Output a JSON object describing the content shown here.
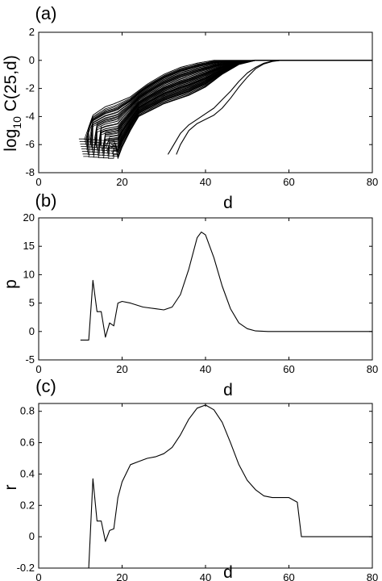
{
  "chart_data": [
    {
      "id": "a",
      "type": "line",
      "panel_label": "(a)",
      "xlabel": "d",
      "ylabel": "log10 C(25,d)",
      "ylabel_parts": {
        "base": "log",
        "sub": "10",
        "rest": " C(25,d)"
      },
      "xlim": [
        0,
        80
      ],
      "ylim": [
        -8,
        2
      ],
      "xticks": [
        0,
        20,
        40,
        60,
        80
      ],
      "yticks": [
        -8,
        -6,
        -4,
        -2,
        0,
        2
      ],
      "bundle": {
        "count": 55,
        "start_x": [
          11,
          19
        ],
        "start_y": [
          -7.0,
          -5.6
        ],
        "upper_path": [
          [
            11,
            -5.6
          ],
          [
            13,
            -3.9
          ],
          [
            16,
            -3.3
          ],
          [
            18,
            -3.1
          ],
          [
            22,
            -2.6
          ],
          [
            26,
            -1.7
          ],
          [
            30,
            -1.0
          ],
          [
            34,
            -0.5
          ],
          [
            38,
            -0.2
          ],
          [
            42,
            0
          ],
          [
            80,
            0
          ]
        ],
        "lower_path": [
          [
            19,
            -7.0
          ],
          [
            20,
            -6.2
          ],
          [
            22,
            -5.0
          ],
          [
            24,
            -4.0
          ],
          [
            30,
            -3.1
          ],
          [
            36,
            -2.5
          ],
          [
            40,
            -1.9
          ],
          [
            44,
            -1.0
          ],
          [
            48,
            -0.3
          ],
          [
            52,
            0
          ],
          [
            80,
            0
          ]
        ]
      },
      "series": [
        {
          "x": [
            31,
            32,
            34,
            36,
            38,
            40,
            42,
            44,
            46,
            48,
            50,
            52,
            54,
            56,
            58,
            60,
            80
          ],
          "y": [
            -6.7,
            -6.2,
            -5.2,
            -4.6,
            -4.2,
            -3.8,
            -3.4,
            -2.8,
            -2.2,
            -1.5,
            -0.9,
            -0.5,
            -0.2,
            -0.05,
            0,
            0,
            0
          ]
        },
        {
          "x": [
            33,
            34,
            36,
            38,
            40,
            42,
            44,
            46,
            48,
            50,
            52,
            54,
            56,
            58,
            60,
            80
          ],
          "y": [
            -6.7,
            -6.0,
            -5.0,
            -4.5,
            -4.2,
            -3.9,
            -3.4,
            -2.7,
            -1.9,
            -1.2,
            -0.6,
            -0.25,
            -0.08,
            0,
            0,
            0
          ]
        }
      ]
    },
    {
      "id": "b",
      "type": "line",
      "panel_label": "(b)",
      "xlabel": "d",
      "ylabel": "p",
      "xlim": [
        0,
        80
      ],
      "ylim": [
        -5,
        20
      ],
      "xticks": [
        0,
        20,
        40,
        60,
        80
      ],
      "yticks": [
        -5,
        0,
        5,
        10,
        15,
        20
      ],
      "series": [
        {
          "x": [
            10,
            12,
            13,
            14,
            15,
            16,
            17,
            18,
            19,
            20,
            22,
            25,
            28,
            30,
            32,
            34,
            36,
            38,
            39,
            40,
            42,
            44,
            46,
            48,
            50,
            52,
            55,
            58,
            60,
            70,
            80
          ],
          "y": [
            -1.5,
            -1.5,
            9,
            3.5,
            3.5,
            -1,
            1.5,
            1,
            5,
            5.3,
            5,
            4.3,
            4,
            3.8,
            4.3,
            6.5,
            11,
            16.5,
            17.5,
            17,
            13,
            8,
            4,
            1.5,
            0.5,
            0.1,
            0,
            0,
            0,
            0,
            0
          ]
        }
      ]
    },
    {
      "id": "c",
      "type": "line",
      "panel_label": "(c)",
      "xlabel": "d",
      "ylabel": "r",
      "xlim": [
        0,
        80
      ],
      "ylim": [
        -0.2,
        0.85
      ],
      "xticks": [
        0,
        20,
        40,
        60,
        80
      ],
      "yticks": [
        -0.2,
        0,
        0.2,
        0.4,
        0.6,
        0.8
      ],
      "series": [
        {
          "x": [
            12,
            13,
            14,
            15,
            16,
            17,
            18,
            19,
            20,
            22,
            24,
            26,
            28,
            30,
            32,
            34,
            36,
            38,
            40,
            42,
            44,
            46,
            48,
            50,
            52,
            54,
            56,
            58,
            60,
            62,
            63,
            70,
            80
          ],
          "y": [
            -0.2,
            0.37,
            0.1,
            0.1,
            -0.03,
            0.04,
            0.05,
            0.25,
            0.35,
            0.46,
            0.48,
            0.5,
            0.51,
            0.53,
            0.57,
            0.65,
            0.75,
            0.82,
            0.84,
            0.81,
            0.73,
            0.6,
            0.46,
            0.36,
            0.3,
            0.26,
            0.25,
            0.25,
            0.25,
            0.22,
            0,
            0,
            0
          ]
        }
      ]
    }
  ]
}
